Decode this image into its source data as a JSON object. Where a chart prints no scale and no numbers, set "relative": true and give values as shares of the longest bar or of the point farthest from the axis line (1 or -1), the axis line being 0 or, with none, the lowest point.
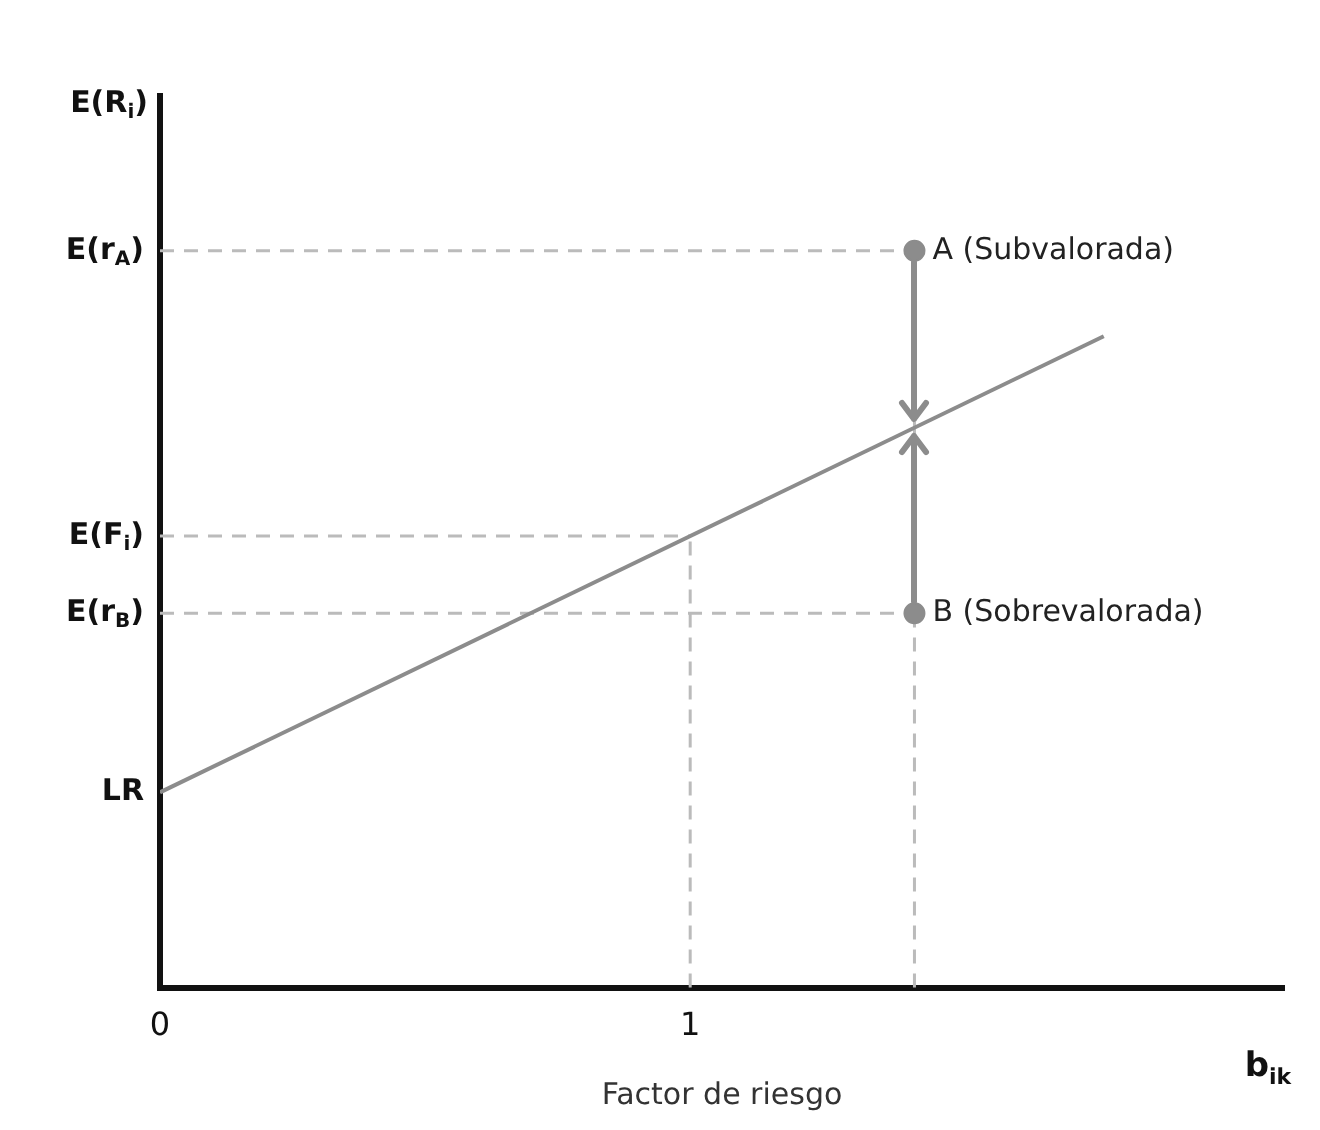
{
  "chart_data": {
    "type": "line",
    "xlabel": "Factor de riesgo",
    "ylabel": "E(R$_{i}$)",
    "xlim": [
      0,
      2.12
    ],
    "xticks": [
      0,
      1
    ],
    "relative": true,
    "series": [
      {
        "color": "#8c8c8c",
        "x": [
          0,
          1.78
        ],
        "values": [
          0.265,
          0.884
        ]
      },
      {
        "type": "scatter",
        "name": "A (Subvalorada)",
        "color": "#8c8c8c",
        "x": [
          1.423
        ],
        "values": [
          1
        ]
      },
      {
        "type": "scatter",
        "name": "B (Sobrevalorada)",
        "color": "#8c8c8c",
        "x": [
          1.423
        ],
        "values": [
          0.508
        ]
      }
    ],
    "ref_lines": [
      {
        "axis": "y",
        "value": 1,
        "label": "E(r$_{A}$)",
        "color": "#bbbbbb",
        "line_style": "dashed"
      },
      {
        "axis": "y",
        "value": 0.613,
        "label": "E(F$_{i}$)",
        "color": "#bbbbbb",
        "line_style": "dashed"
      },
      {
        "axis": "y",
        "value": 0.508,
        "label": "E(r$_{B}$)",
        "color": "#bbbbbb",
        "line_style": "dashed"
      },
      {
        "axis": "x",
        "value": 1,
        "color": "#bbbbbb",
        "line_style": "dashed"
      },
      {
        "axis": "x",
        "value": 1.423,
        "color": "#bbbbbb",
        "line_style": "dashed"
      }
    ],
    "annotations": [
      {
        "text": "LR",
        "x": 0,
        "y": 0.265
      },
      "b$_{ik}$"
    ],
    "grid": false,
    "legend": false
  }
}
